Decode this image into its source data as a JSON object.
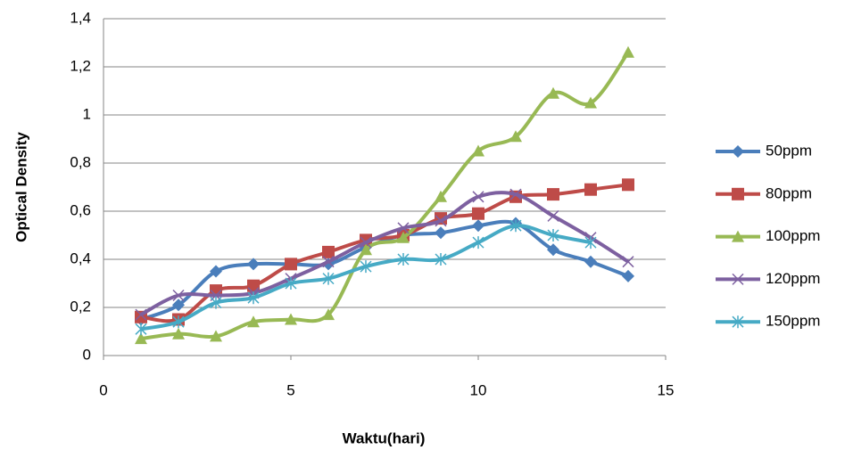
{
  "chart_data": {
    "type": "line",
    "x_label": "Waktu(hari)",
    "y_label": "Optical Density",
    "x": [
      1,
      2,
      3,
      4,
      5,
      6,
      7,
      8,
      9,
      10,
      11,
      12,
      13,
      14
    ],
    "series": [
      {
        "name": "50ppm",
        "color": "#4a7ebb",
        "marker": "diamond",
        "values": [
          0.15,
          0.21,
          0.35,
          0.38,
          0.38,
          0.38,
          0.45,
          0.5,
          0.51,
          0.54,
          0.55,
          0.44,
          0.39,
          0.33
        ]
      },
      {
        "name": "80ppm",
        "color": "#be4b48",
        "marker": "square",
        "values": [
          0.16,
          0.15,
          0.27,
          0.29,
          0.38,
          0.43,
          0.48,
          0.5,
          0.57,
          0.59,
          0.66,
          0.67,
          0.69,
          0.71
        ]
      },
      {
        "name": "100ppm",
        "color": "#98b954",
        "marker": "triangle",
        "values": [
          0.07,
          0.09,
          0.08,
          0.14,
          0.15,
          0.17,
          0.44,
          0.49,
          0.66,
          0.85,
          0.91,
          1.09,
          1.05,
          1.26
        ]
      },
      {
        "name": "120ppm",
        "color": "#7d60a0",
        "marker": "x",
        "values": [
          0.17,
          0.25,
          0.25,
          0.26,
          0.32,
          0.39,
          0.47,
          0.53,
          0.56,
          0.66,
          0.67,
          0.58,
          0.49,
          0.39
        ]
      },
      {
        "name": "150ppm",
        "color": "#46aac5",
        "marker": "star",
        "values": [
          0.11,
          0.14,
          0.22,
          0.24,
          0.3,
          0.32,
          0.37,
          0.4,
          0.4,
          0.47,
          0.54,
          0.5,
          0.47,
          null
        ]
      }
    ],
    "xlim": [
      0,
      15
    ],
    "xticks": [
      0,
      5,
      10,
      15
    ],
    "ylim": [
      0,
      1.4
    ],
    "yticks": [
      0,
      {
        "value": 0.2,
        "label": "0,2"
      },
      {
        "value": 0.4,
        "label": "0,4"
      },
      {
        "value": 0.6,
        "label": "0,6"
      },
      {
        "value": 0.8,
        "label": "0,8"
      },
      1,
      {
        "value": 1.2,
        "label": "1,2"
      },
      {
        "value": 1.4,
        "label": "1,4"
      }
    ],
    "grid": true,
    "smooth": true,
    "legend": "right"
  }
}
